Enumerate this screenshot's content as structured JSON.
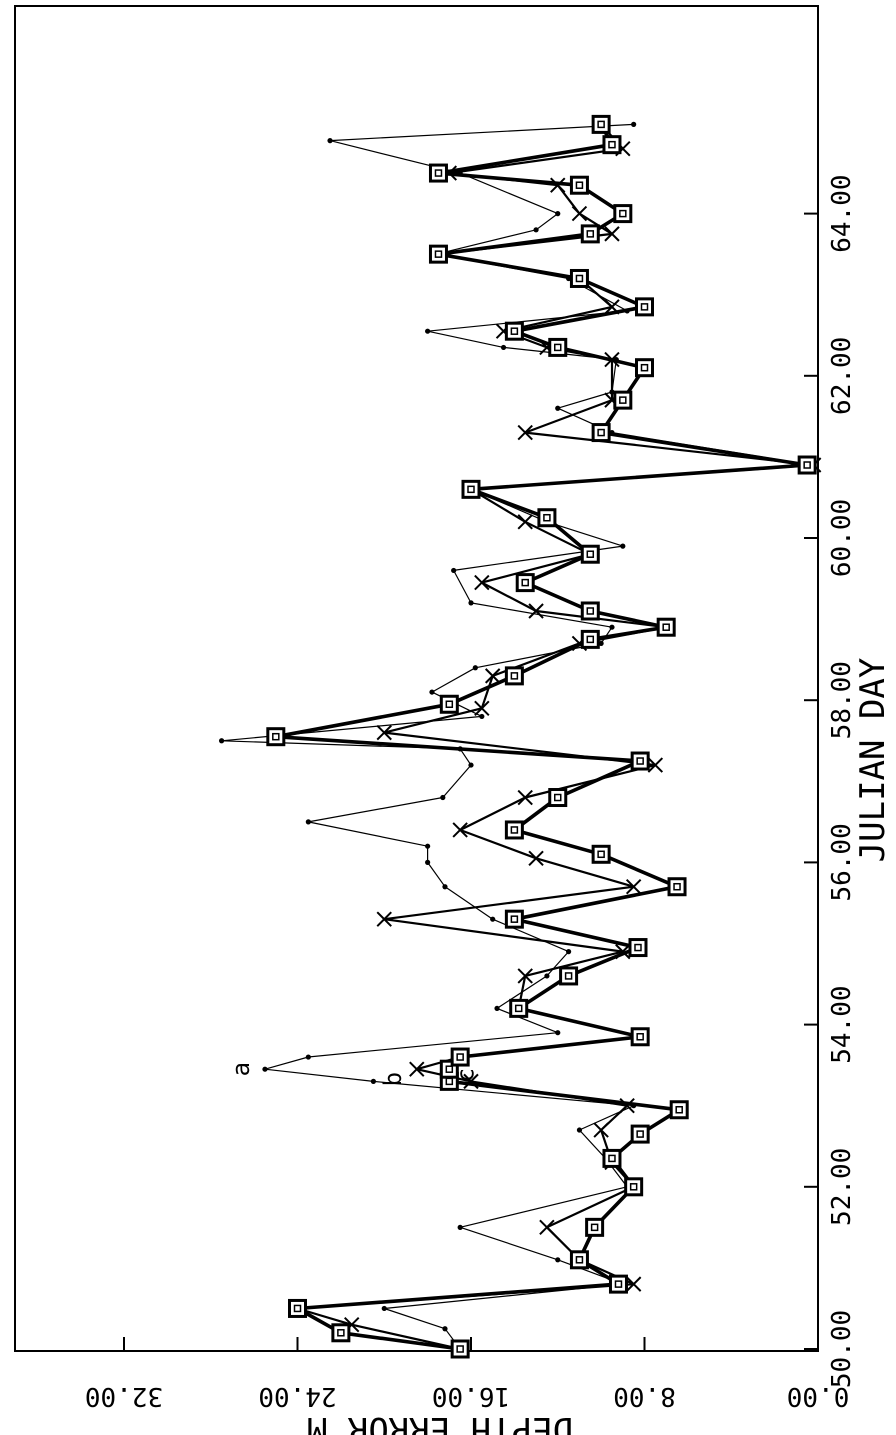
{
  "chart_data": {
    "type": "line",
    "orientation": "rotated-90-clockwise",
    "xlabel": "JULIAN DAY",
    "ylabel": "DEPTH ERROR M",
    "xlim": [
      50,
      65.2
    ],
    "ylim": [
      0,
      32
    ],
    "x_ticks": [
      "50.00",
      "52.00",
      "54.00",
      "56.00",
      "58.00",
      "60.00",
      "62.00",
      "64.00"
    ],
    "y_ticks": [
      "0.00",
      "8.00",
      "16.00",
      "24.00",
      "32.00"
    ],
    "grid": false,
    "legend": "none",
    "series": [
      {
        "label": "a",
        "marker": "dot",
        "points": [
          [
            50.0,
            16.5
          ],
          [
            50.25,
            17.2
          ],
          [
            50.5,
            20.0
          ],
          [
            50.8,
            9.0
          ],
          [
            51.1,
            12.0
          ],
          [
            51.5,
            16.5
          ],
          [
            52.0,
            8.8
          ],
          [
            52.35,
            9.8
          ],
          [
            52.7,
            11.0
          ],
          [
            53.0,
            8.5
          ],
          [
            53.3,
            20.5
          ],
          [
            53.45,
            25.5
          ],
          [
            53.6,
            23.5
          ],
          [
            53.9,
            12.0
          ],
          [
            54.2,
            14.8
          ],
          [
            54.6,
            12.5
          ],
          [
            54.9,
            11.5
          ],
          [
            55.3,
            15.0
          ],
          [
            55.7,
            17.2
          ],
          [
            56.0,
            18.0
          ],
          [
            56.2,
            18.0
          ],
          [
            56.5,
            23.5
          ],
          [
            56.8,
            17.3
          ],
          [
            57.2,
            16.0
          ],
          [
            57.4,
            16.5
          ],
          [
            57.5,
            27.5
          ],
          [
            57.8,
            15.5
          ],
          [
            58.1,
            17.8
          ],
          [
            58.4,
            15.8
          ],
          [
            58.7,
            10.0
          ],
          [
            58.9,
            9.5
          ],
          [
            59.2,
            16.0
          ],
          [
            59.6,
            16.8
          ],
          [
            59.9,
            9.0
          ],
          [
            60.2,
            12.5
          ],
          [
            60.6,
            16.0
          ],
          [
            60.9,
            0.3
          ],
          [
            61.3,
            9.5
          ],
          [
            61.6,
            12.0
          ],
          [
            61.8,
            9.5
          ],
          [
            62.2,
            9.3
          ],
          [
            62.35,
            14.5
          ],
          [
            62.55,
            18.0
          ],
          [
            62.8,
            8.8
          ],
          [
            63.2,
            11.5
          ],
          [
            63.5,
            17.6
          ],
          [
            63.8,
            13.0
          ],
          [
            64.0,
            12.0
          ],
          [
            64.5,
            16.5
          ],
          [
            64.9,
            22.5
          ],
          [
            65.1,
            8.5
          ]
        ]
      },
      {
        "label": "b",
        "marker": "x",
        "points": [
          [
            50.0,
            16.5
          ],
          [
            50.3,
            21.5
          ],
          [
            50.5,
            24.0
          ],
          [
            50.8,
            8.5
          ],
          [
            51.1,
            11.0
          ],
          [
            51.5,
            12.5
          ],
          [
            52.0,
            8.5
          ],
          [
            52.3,
            9.5
          ],
          [
            52.7,
            10.0
          ],
          [
            53.0,
            8.8
          ],
          [
            53.3,
            16.0
          ],
          [
            53.45,
            18.5
          ],
          [
            53.6,
            16.5
          ],
          [
            53.85,
            8.2
          ],
          [
            54.2,
            13.8
          ],
          [
            54.6,
            13.5
          ],
          [
            54.9,
            9.0
          ],
          [
            55.3,
            20.0
          ],
          [
            55.7,
            8.5
          ],
          [
            56.05,
            13.0
          ],
          [
            56.4,
            16.5
          ],
          [
            56.8,
            13.5
          ],
          [
            57.2,
            7.5
          ],
          [
            57.6,
            20.0
          ],
          [
            57.9,
            15.5
          ],
          [
            58.3,
            15.0
          ],
          [
            58.7,
            11.0
          ],
          [
            58.9,
            7.0
          ],
          [
            59.1,
            13.0
          ],
          [
            59.45,
            15.5
          ],
          [
            59.8,
            10.5
          ],
          [
            60.2,
            13.5
          ],
          [
            60.6,
            16.0
          ],
          [
            60.9,
            0.2
          ],
          [
            61.3,
            13.5
          ],
          [
            61.7,
            9.5
          ],
          [
            62.2,
            9.5
          ],
          [
            62.35,
            12.5
          ],
          [
            62.55,
            14.5
          ],
          [
            62.85,
            9.5
          ],
          [
            63.2,
            11.0
          ],
          [
            63.5,
            17.5
          ],
          [
            63.75,
            9.5
          ],
          [
            64.0,
            11.0
          ],
          [
            64.35,
            12.0
          ],
          [
            64.5,
            17.0
          ],
          [
            64.8,
            9.0
          ],
          [
            65.1,
            10.0
          ]
        ]
      },
      {
        "label": "c",
        "marker": "square",
        "points": [
          [
            50.0,
            16.5
          ],
          [
            50.2,
            22.0
          ],
          [
            50.5,
            24.0
          ],
          [
            50.8,
            9.2
          ],
          [
            51.1,
            11.0
          ],
          [
            51.5,
            10.3
          ],
          [
            52.0,
            8.5
          ],
          [
            52.35,
            9.5
          ],
          [
            52.65,
            8.2
          ],
          [
            52.95,
            6.4
          ],
          [
            53.3,
            17.0
          ],
          [
            53.45,
            17.0
          ],
          [
            53.6,
            16.5
          ],
          [
            53.85,
            8.2
          ],
          [
            54.2,
            13.8
          ],
          [
            54.6,
            11.5
          ],
          [
            54.95,
            8.3
          ],
          [
            55.3,
            14.0
          ],
          [
            55.7,
            6.5
          ],
          [
            56.1,
            10.0
          ],
          [
            56.4,
            14.0
          ],
          [
            56.8,
            12.0
          ],
          [
            57.25,
            8.2
          ],
          [
            57.55,
            25.0
          ],
          [
            57.95,
            17.0
          ],
          [
            58.3,
            14.0
          ],
          [
            58.75,
            10.5
          ],
          [
            58.9,
            7.0
          ],
          [
            59.1,
            10.5
          ],
          [
            59.45,
            13.5
          ],
          [
            59.8,
            10.5
          ],
          [
            60.25,
            12.5
          ],
          [
            60.6,
            16.0
          ],
          [
            60.9,
            0.5
          ],
          [
            61.3,
            10.0
          ],
          [
            61.7,
            9.0
          ],
          [
            62.1,
            8.0
          ],
          [
            62.35,
            12.0
          ],
          [
            62.55,
            14.0
          ],
          [
            62.85,
            8.0
          ],
          [
            63.2,
            11.0
          ],
          [
            63.5,
            17.5
          ],
          [
            63.75,
            10.5
          ],
          [
            64.0,
            9.0
          ],
          [
            64.35,
            11.0
          ],
          [
            64.5,
            17.5
          ],
          [
            64.85,
            9.5
          ],
          [
            65.1,
            10.0
          ]
        ]
      }
    ]
  }
}
